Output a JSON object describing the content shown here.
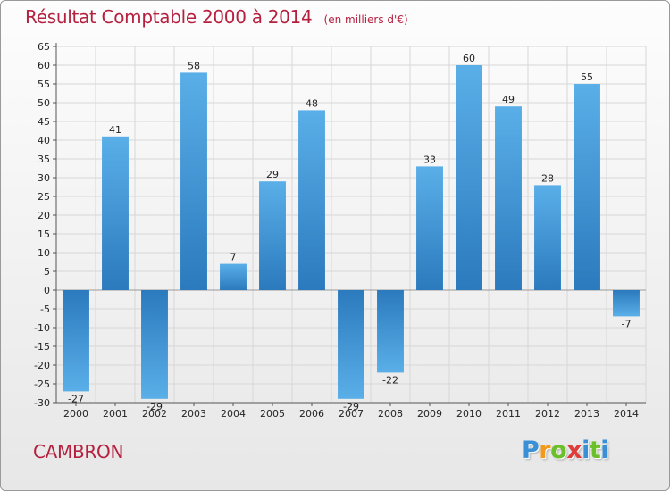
{
  "colors": {
    "title": "#b5203f",
    "bar_light": "#5aafe8",
    "bar_dark": "#2b7abd",
    "grid": "#d7d7d7",
    "axis": "#555555"
  },
  "place_name": "CAMBRON",
  "brand": {
    "letters": [
      "P",
      "r",
      "o",
      "x",
      "i",
      "t",
      "i"
    ],
    "colors": [
      "#3a8fd6",
      "#f29a1a",
      "#6bbf2b",
      "#e03c3c",
      "#3a8fd6",
      "#6bbf2b",
      "#3a8fd6"
    ]
  },
  "chart_data": {
    "type": "bar",
    "title": "Résultat Comptable 2000 à 2014",
    "subtitle": "(en milliers d'€)",
    "categories": [
      "2000",
      "2001",
      "2002",
      "2003",
      "2004",
      "2005",
      "2006",
      "2007",
      "2008",
      "2009",
      "2010",
      "2011",
      "2012",
      "2013",
      "2014"
    ],
    "values": [
      -27,
      41,
      -29,
      58,
      7,
      29,
      48,
      -29,
      -22,
      33,
      60,
      49,
      28,
      55,
      -7
    ],
    "value_labels": [
      "-27",
      "41",
      "-29",
      "58",
      "7",
      "29",
      "48",
      "-29",
      "-22",
      "33",
      "60",
      "49",
      "28",
      "55",
      "-7"
    ],
    "ylim": [
      -30,
      65
    ],
    "ytick_step": 5,
    "grid": true,
    "xlabel": "",
    "ylabel": ""
  }
}
